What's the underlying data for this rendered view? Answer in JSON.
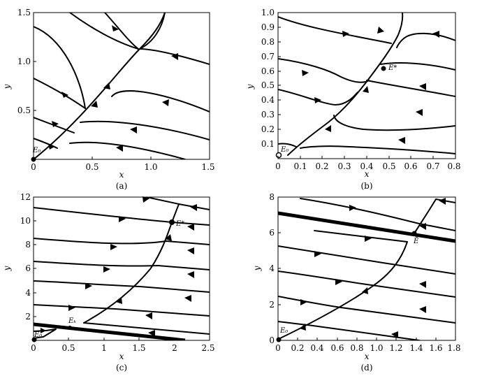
{
  "panels": [
    {
      "caption": "(a)",
      "xlabel": "x",
      "ylabel": "y",
      "xticks": [
        "0",
        "0.5",
        "1.0",
        "1.5"
      ],
      "yticks": [
        "0.5",
        "1.0",
        "1.5"
      ],
      "points": [
        {
          "label": "E₀"
        }
      ]
    },
    {
      "caption": "(b)",
      "xlabel": "x",
      "ylabel": "y",
      "xticks": [
        "0",
        "0.1",
        "0.2",
        "0.3",
        "0.4",
        "0.5",
        "0.6",
        "0.7",
        "0.8"
      ],
      "yticks": [
        "0.1",
        "0.2",
        "0.3",
        "0.4",
        "0.5",
        "0.6",
        "0.7",
        "0.8",
        "0.9",
        "1.0"
      ],
      "points": [
        {
          "label": "E*"
        },
        {
          "label": "E₀"
        }
      ]
    },
    {
      "caption": "(c)",
      "xlabel": "x",
      "ylabel": "y",
      "xticks": [
        "0",
        "0.5",
        "1",
        "1.5",
        "2",
        "2.5"
      ],
      "yticks": [
        "2",
        "4",
        "6",
        "8",
        "10",
        "12"
      ],
      "points": [
        {
          "label": "E*"
        },
        {
          "label": "Eₖ"
        },
        {
          "label": "E₀"
        }
      ]
    },
    {
      "caption": "(d)",
      "xlabel": "x",
      "ylabel": "y",
      "xticks": [
        "0",
        "0.2",
        "0.4",
        "0.6",
        "0.8",
        "1.0",
        "1.2",
        "1.4",
        "1.6",
        "1.8"
      ],
      "yticks": [
        "0",
        "2",
        "4",
        "6",
        "8"
      ],
      "points": [
        {
          "label": "Ē"
        },
        {
          "label": "E₀"
        }
      ]
    }
  ]
}
